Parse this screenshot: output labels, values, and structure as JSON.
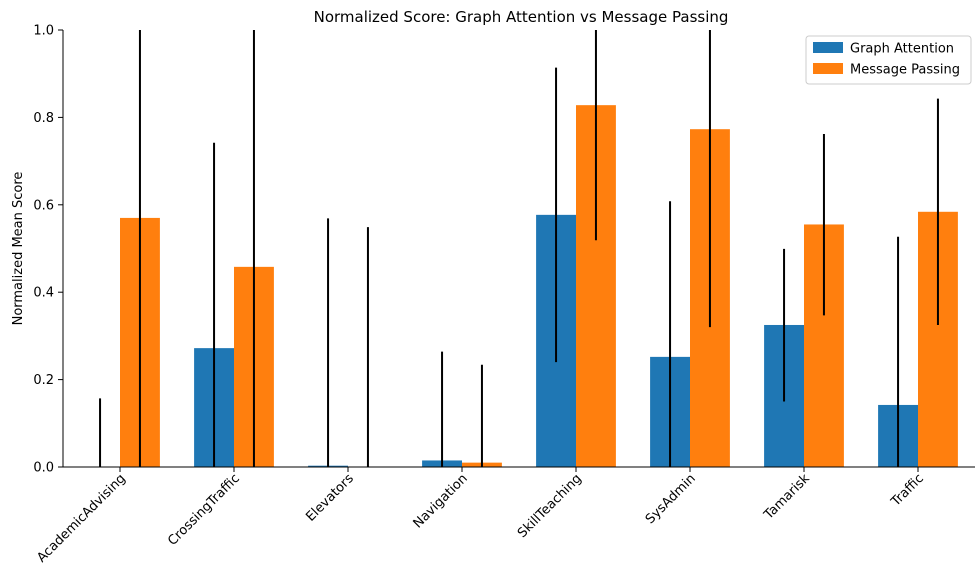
{
  "chart_data": {
    "type": "bar",
    "title": "Normalized Score: Graph Attention vs Message Passing",
    "xlabel": "",
    "ylabel": "Normalized Mean Score",
    "ylim": [
      0,
      1.0
    ],
    "yticks": [
      0.0,
      0.2,
      0.4,
      0.6,
      0.8,
      1.0
    ],
    "ytick_labels": [
      "0.0",
      "0.2",
      "0.4",
      "0.6",
      "0.8",
      "1.0"
    ],
    "grid": false,
    "legend_position": "top-right",
    "categories": [
      "AcademicAdvising",
      "CrossingTraffic",
      "Elevators",
      "Navigation",
      "SkillTeaching",
      "SysAdmin",
      "Tamarisk",
      "Traffic"
    ],
    "series": [
      {
        "name": "Graph Attention",
        "color": "#1f77b4",
        "values": [
          0.0,
          0.272,
          0.003,
          0.015,
          0.577,
          0.252,
          0.325,
          0.142
        ],
        "err_low": [
          0.0,
          0.0,
          0.0,
          0.0,
          0.24,
          0.0,
          0.15,
          0.0
        ],
        "err_high": [
          0.157,
          0.742,
          0.569,
          0.264,
          0.914,
          0.608,
          0.499,
          0.527
        ]
      },
      {
        "name": "Message Passing",
        "color": "#ff7f0e",
        "values": [
          0.57,
          0.458,
          0.0,
          0.01,
          0.828,
          0.773,
          0.555,
          0.584
        ],
        "err_low": [
          0.0,
          0.0,
          0.0,
          0.0,
          0.519,
          0.32,
          0.347,
          0.325
        ],
        "err_high": [
          1.0,
          1.0,
          0.549,
          0.234,
          1.0,
          1.0,
          0.762,
          0.843
        ]
      }
    ]
  }
}
